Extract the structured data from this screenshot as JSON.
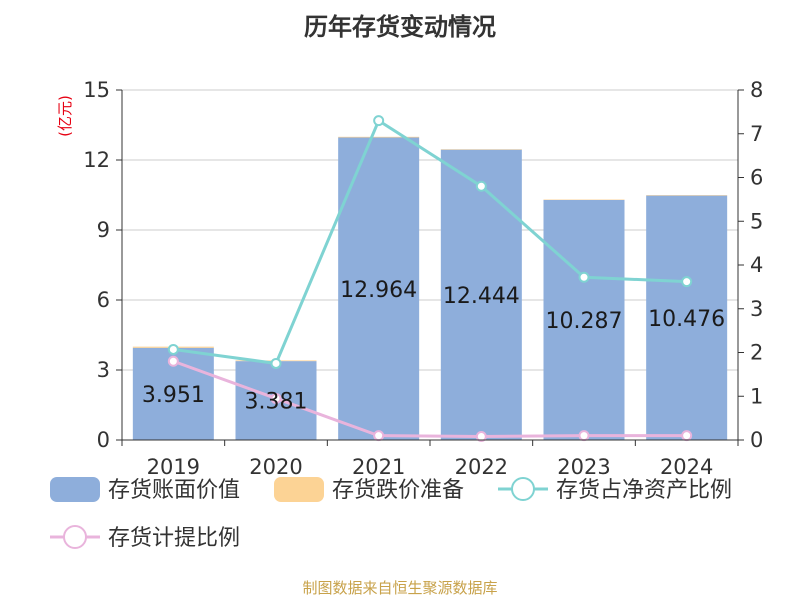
{
  "chart_data": {
    "type": "bar",
    "title": "历年存货变动情况",
    "unit_label": "(亿元)",
    "categories": [
      "2019",
      "2020",
      "2021",
      "2022",
      "2023",
      "2024"
    ],
    "y_left": {
      "min": 0,
      "max": 15,
      "ticks": [
        0,
        3,
        6,
        9,
        12,
        15
      ]
    },
    "y_right": {
      "min": 0,
      "max": 8,
      "ticks": [
        0,
        1,
        2,
        3,
        4,
        5,
        6,
        7,
        8
      ]
    },
    "series": [
      {
        "name": "存货账面价值",
        "type": "bar",
        "axis": "left",
        "color": "#8eaedb",
        "values": [
          3.951,
          3.381,
          12.964,
          12.444,
          10.287,
          10.476
        ],
        "labels": [
          "3.951",
          "3.381",
          "12.964",
          "12.444",
          "10.287",
          "10.476"
        ]
      },
      {
        "name": "存货跌价准备",
        "type": "bar",
        "axis": "left",
        "color": "#fcd395",
        "values": [
          0.05,
          0.03,
          0.03,
          0.02,
          0.02,
          0.02
        ]
      },
      {
        "name": "存货占净资产比例",
        "type": "line",
        "axis": "right",
        "color": "#7fd3d2",
        "values": [
          2.07,
          1.75,
          7.3,
          5.8,
          3.72,
          3.62
        ]
      },
      {
        "name": "存货计提比例",
        "type": "line",
        "axis": "right",
        "color": "#e9b4dc",
        "values": [
          1.8,
          0.95,
          0.1,
          0.08,
          0.1,
          0.1
        ]
      }
    ],
    "grid": true,
    "legend_position": "bottom"
  },
  "source_text": "制图数据来自恒生聚源数据库"
}
